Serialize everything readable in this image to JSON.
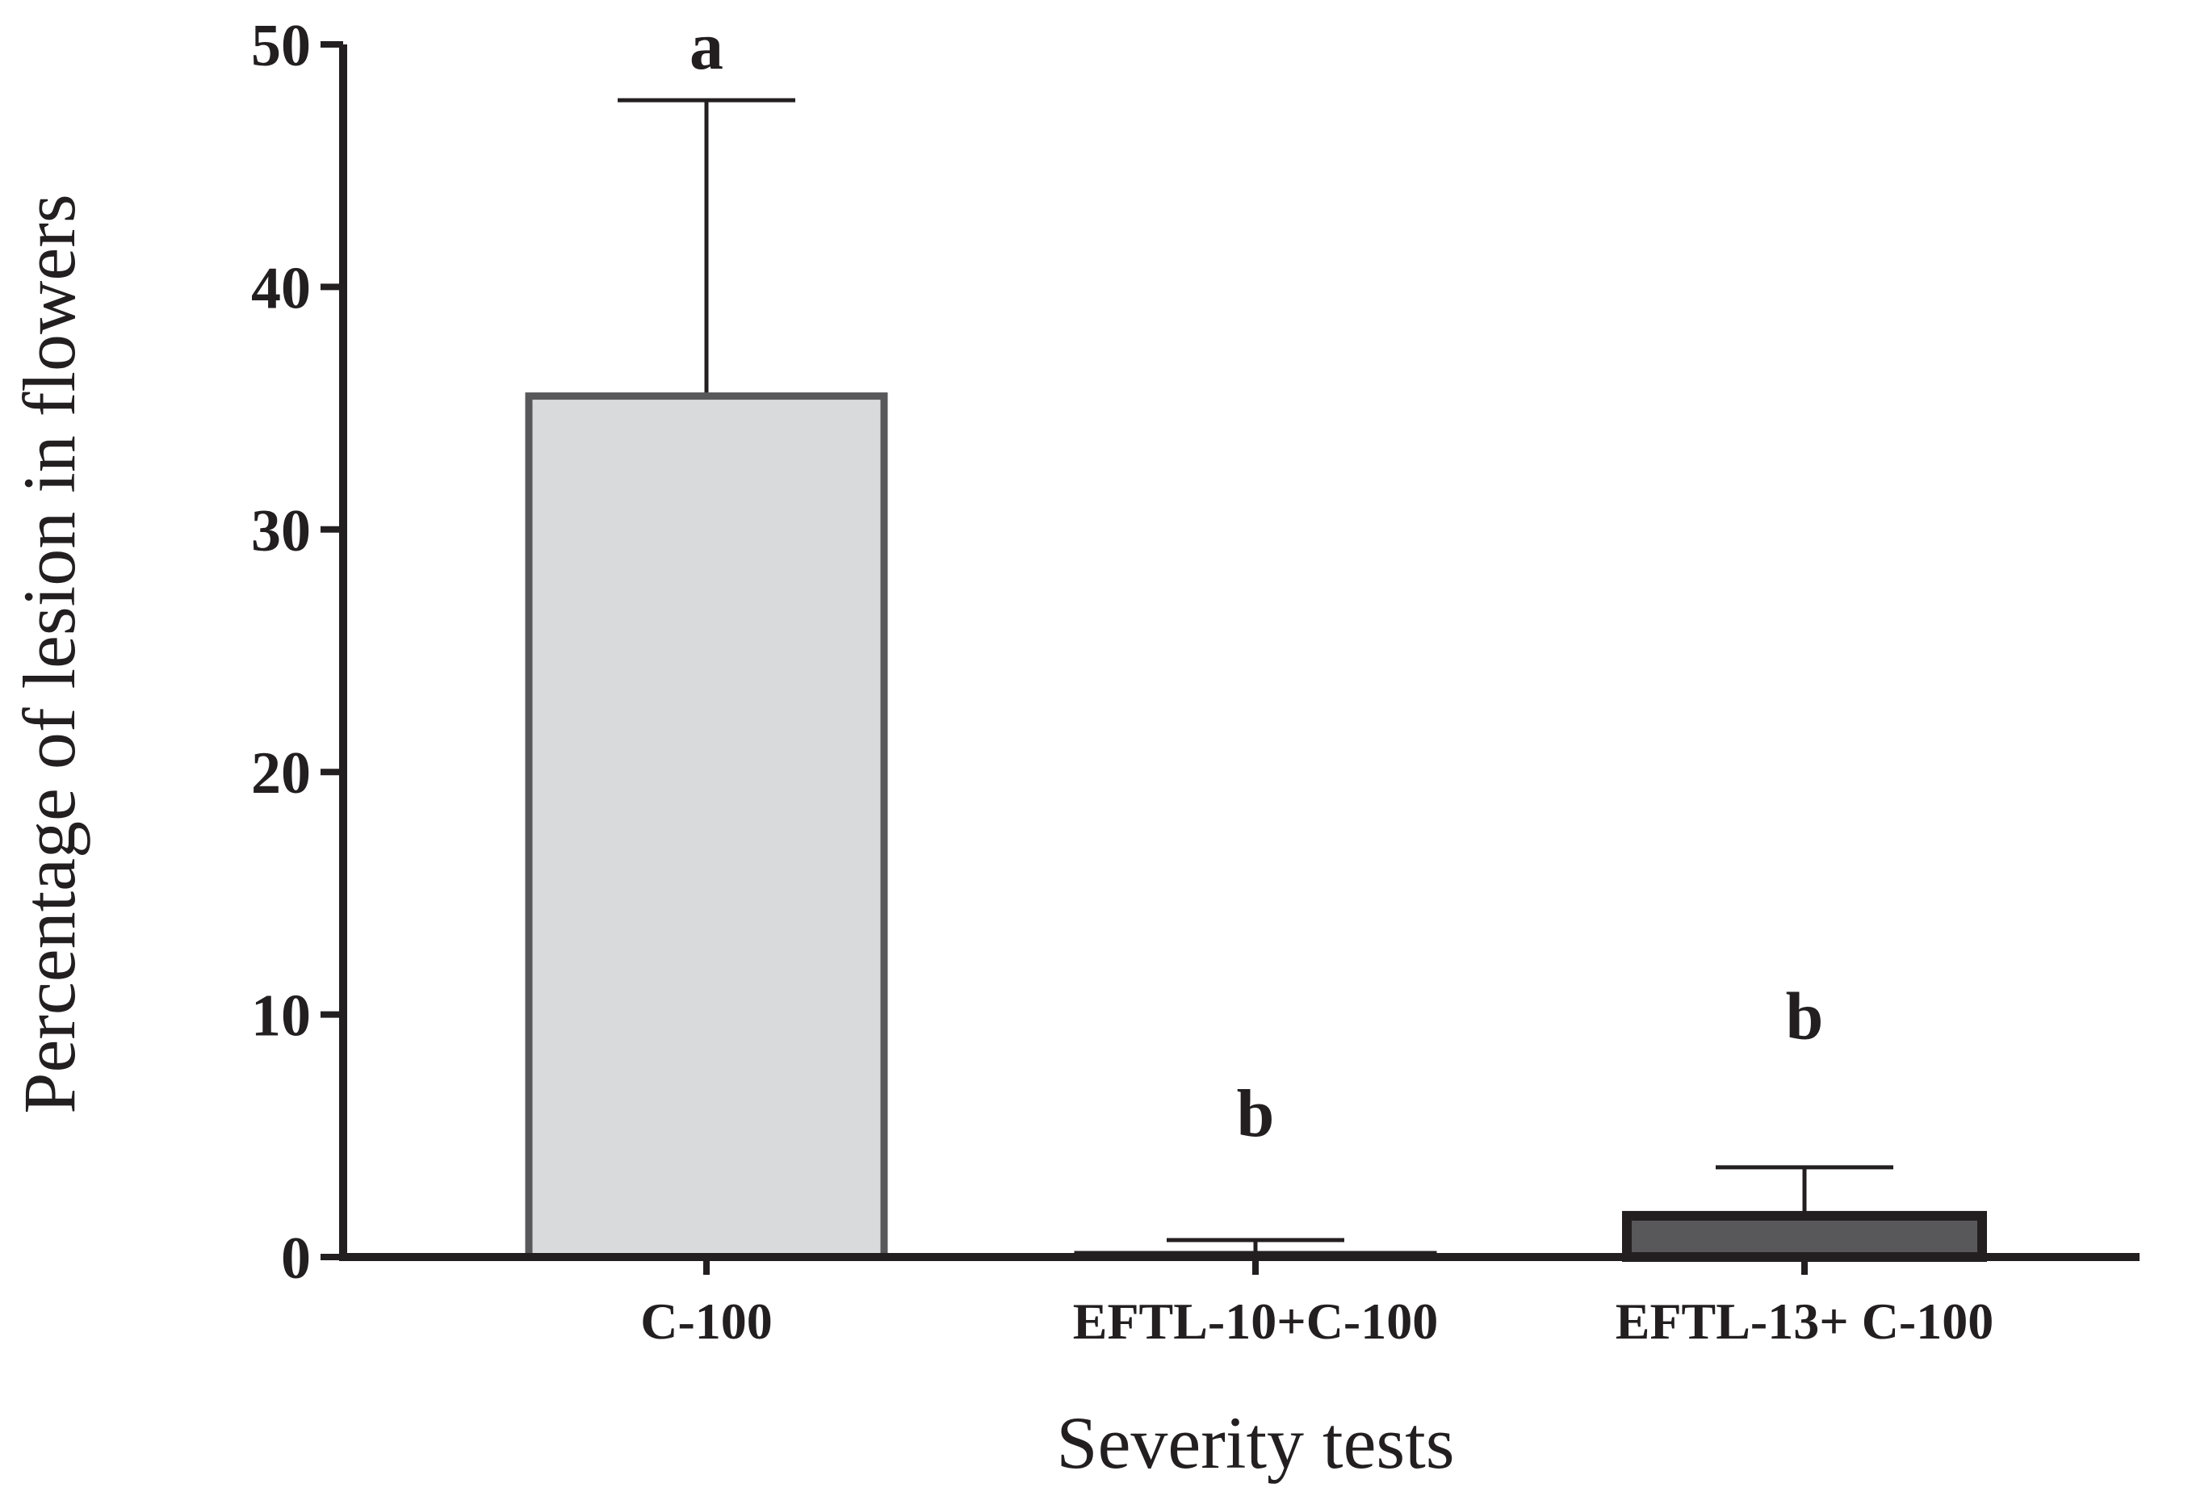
{
  "chart_data": {
    "type": "bar",
    "title": "",
    "xlabel": "Severity tests",
    "ylabel": "Percentage of lesion in flowers",
    "ylim": [
      0,
      50
    ],
    "yticks": [
      0,
      10,
      20,
      30,
      40,
      50
    ],
    "ytick_labels": [
      "0",
      "10",
      "20",
      "30",
      "40",
      "50"
    ],
    "categories": [
      "C-100",
      "EFTL-10+C-100",
      "EFTL-13+ C-100"
    ],
    "values": [
      35.5,
      0.1,
      1.7
    ],
    "errors": [
      12.2,
      0.6,
      2.0
    ],
    "significance": [
      "a",
      "b",
      "b"
    ],
    "significance_y": [
      50,
      6,
      10
    ],
    "bar_fill_colors": [
      "#d9dadc",
      "#ffffff",
      "#58585a"
    ],
    "bar_stroke_colors": [
      "#58585a",
      "#231f20",
      "#231f20"
    ],
    "axis_color": "#231f20",
    "grid": false,
    "legend": "none"
  }
}
